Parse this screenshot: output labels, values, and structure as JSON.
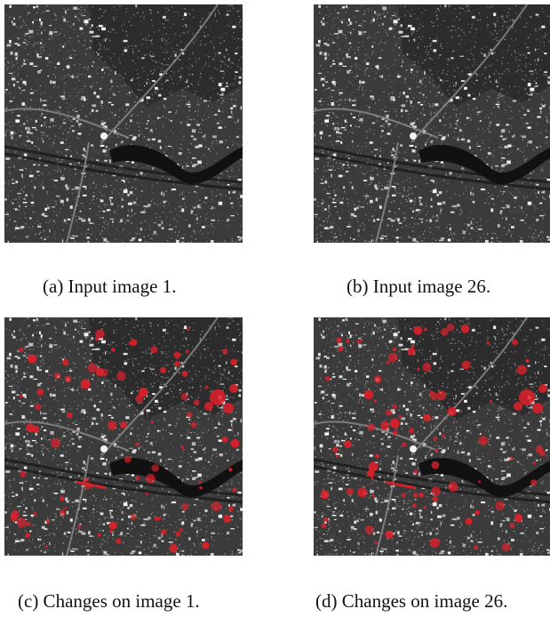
{
  "figure": {
    "panels": [
      {
        "id": "a",
        "caption": "(a) Input image 1.",
        "kind": "sar-input",
        "variant": 1,
        "overlay": false
      },
      {
        "id": "b",
        "caption": "(b) Input image 26.",
        "kind": "sar-input",
        "variant": 26,
        "overlay": false
      },
      {
        "id": "c",
        "caption": "(c) Changes on image 1.",
        "kind": "sar-change-map",
        "variant": 1,
        "overlay": true
      },
      {
        "id": "d",
        "caption": "(d) Changes on image 26.",
        "kind": "sar-change-map",
        "variant": 26,
        "overlay": true
      }
    ],
    "colors": {
      "background": "#ffffff",
      "caption_text": "#111111",
      "change_overlay": "#e0202a"
    }
  }
}
